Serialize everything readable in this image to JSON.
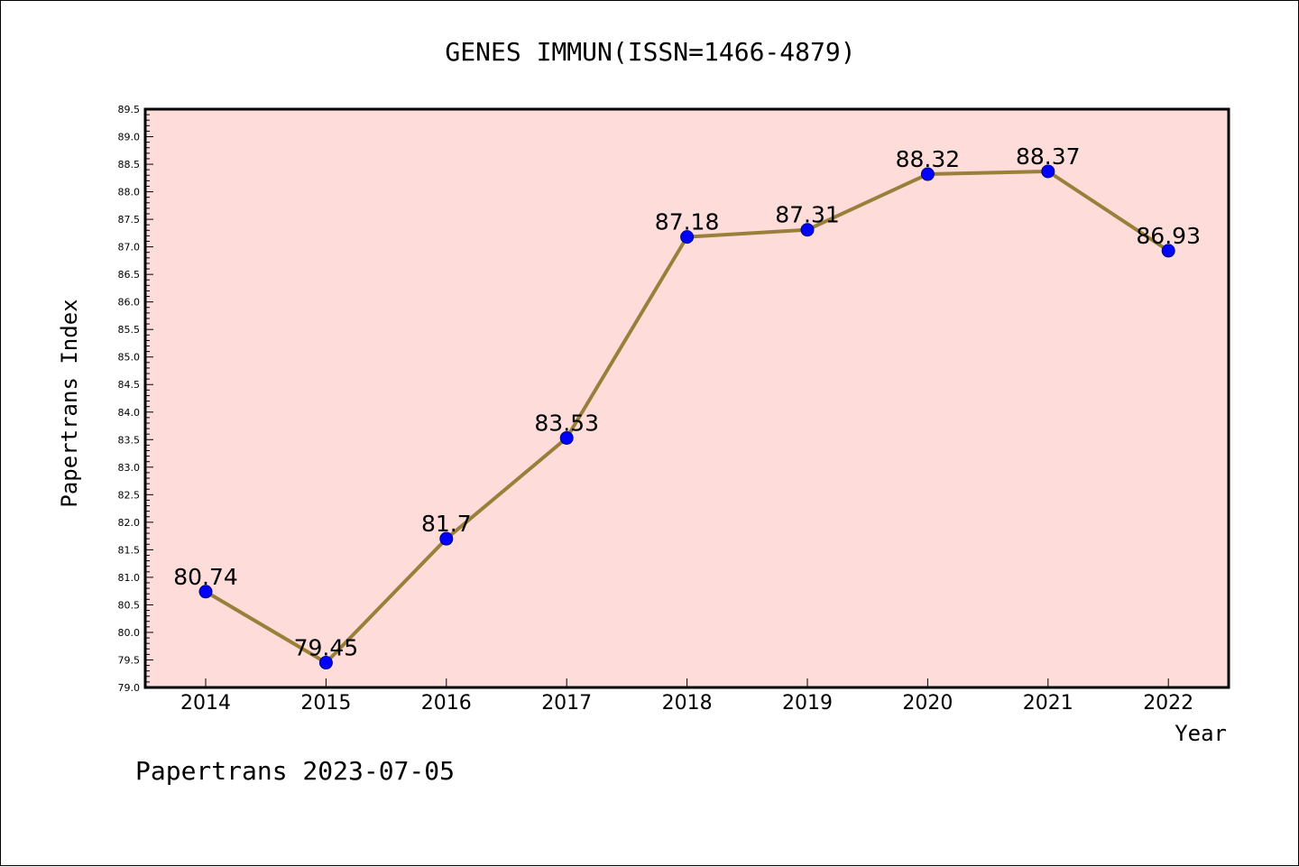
{
  "chart_data": {
    "type": "line",
    "title": "GENES IMMUN(ISSN=1466-4879)",
    "xlabel": "Year",
    "ylabel": "Papertrans Index",
    "categories": [
      "2014",
      "2015",
      "2016",
      "2017",
      "2018",
      "2019",
      "2020",
      "2021",
      "2022"
    ],
    "values": [
      80.74,
      79.45,
      81.7,
      83.53,
      87.18,
      87.31,
      88.32,
      88.37,
      86.93
    ],
    "data_labels": [
      "80.74",
      "79.45",
      "81.7",
      "83.53",
      "87.18",
      "87.31",
      "88.32",
      "88.37",
      "86.93"
    ],
    "ylim": [
      79.0,
      89.5
    ],
    "yticks": [
      "79.0",
      "79.5",
      "80.0",
      "80.5",
      "81.0",
      "81.5",
      "82.0",
      "82.5",
      "83.0",
      "83.5",
      "84.0",
      "84.5",
      "85.0",
      "85.5",
      "86.0",
      "86.5",
      "87.0",
      "87.5",
      "88.0",
      "88.5",
      "89.0",
      "89.5"
    ],
    "grid": false,
    "legend": "none",
    "colors": {
      "plot_background": "#FDDCDA",
      "line": "#9A7F3A",
      "marker": "#0000FF"
    },
    "footer": "Papertrans 2023-07-05"
  }
}
